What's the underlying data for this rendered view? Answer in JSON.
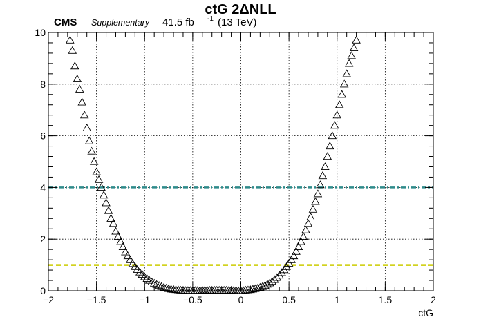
{
  "chart_data": {
    "type": "scatter",
    "title": "ctG 2ΔNLL",
    "xlabel": "ctG",
    "ylabel": "",
    "xlim": [
      -2,
      2
    ],
    "ylim": [
      0,
      10
    ],
    "x_ticks": [
      -2,
      -1.5,
      -1,
      -0.5,
      0,
      0.5,
      1,
      1.5,
      2
    ],
    "x_tick_labels": [
      "−2",
      "−1.5",
      "−1",
      "−0.5",
      "0",
      "0.5",
      "1",
      "1.5",
      "2"
    ],
    "y_ticks": [
      0,
      2,
      4,
      6,
      8,
      10
    ],
    "y_tick_labels": [
      "0",
      "2",
      "4",
      "6",
      "8",
      "10"
    ],
    "grid": true,
    "marker": "open-triangle",
    "annotations": {
      "experiment": "CMS",
      "status": "Supplementary",
      "lumi": "41.5 fb",
      "lumi_exp": "-1",
      "energy": "(13 TeV)"
    },
    "reference_lines": [
      {
        "y": 4,
        "color": "#2e8b8b",
        "style": "dash-dot"
      },
      {
        "y": 1,
        "color": "#cccc00",
        "style": "dashed"
      }
    ],
    "series": [
      {
        "x": [
          -1.775,
          -1.75,
          -1.725,
          -1.7,
          -1.675,
          -1.65,
          -1.625,
          -1.6,
          -1.575,
          -1.55,
          -1.525,
          -1.5,
          -1.475,
          -1.45,
          -1.425,
          -1.4,
          -1.375,
          -1.35,
          -1.325,
          -1.3,
          -1.275,
          -1.25,
          -1.225,
          -1.2,
          -1.175,
          -1.15,
          -1.125,
          -1.1,
          -1.075,
          -1.05,
          -1.025,
          -1.0,
          -0.975,
          -0.95,
          -0.925,
          -0.9,
          -0.875,
          -0.85,
          -0.825,
          -0.8,
          -0.775,
          -0.75,
          -0.725,
          -0.7,
          -0.675,
          -0.65,
          -0.625,
          -0.6,
          -0.575,
          -0.55,
          -0.525,
          -0.5,
          -0.475,
          -0.45,
          -0.425,
          -0.4,
          -0.375,
          -0.35,
          -0.325,
          -0.3,
          -0.275,
          -0.25,
          -0.225,
          -0.2,
          -0.175,
          -0.15,
          -0.125,
          -0.1,
          -0.075,
          -0.05,
          -0.025,
          0.0,
          0.025,
          0.05,
          0.075,
          0.1,
          0.125,
          0.15,
          0.175,
          0.2,
          0.225,
          0.25,
          0.275,
          0.3,
          0.325,
          0.35,
          0.375,
          0.4,
          0.425,
          0.45,
          0.475,
          0.5,
          0.525,
          0.55,
          0.575,
          0.6,
          0.625,
          0.65,
          0.675,
          0.7,
          0.725,
          0.75,
          0.775,
          0.8,
          0.825,
          0.85,
          0.875,
          0.9,
          0.925,
          0.95,
          0.975,
          1.0,
          1.025,
          1.05,
          1.075,
          1.1,
          1.125,
          1.15,
          1.175,
          1.2
        ],
        "y": [
          9.7,
          9.3,
          8.7,
          8.2,
          7.8,
          7.3,
          6.8,
          6.3,
          5.8,
          5.4,
          5.0,
          4.6,
          4.3,
          4.0,
          3.7,
          3.4,
          3.1,
          2.8,
          2.6,
          2.3,
          2.1,
          1.9,
          1.7,
          1.5,
          1.35,
          1.2,
          1.05,
          0.93,
          0.82,
          0.72,
          0.63,
          0.54,
          0.47,
          0.4,
          0.34,
          0.29,
          0.24,
          0.2,
          0.16,
          0.13,
          0.1,
          0.08,
          0.06,
          0.05,
          0.04,
          0.03,
          0.02,
          0.02,
          0.01,
          0.01,
          0.01,
          0.01,
          0.01,
          0.01,
          0.01,
          0.02,
          0.02,
          0.02,
          0.02,
          0.02,
          0.02,
          0.02,
          0.02,
          0.02,
          0.02,
          0.02,
          0.02,
          0.02,
          0.01,
          0.01,
          0.0,
          0.0,
          0.01,
          0.02,
          0.03,
          0.04,
          0.06,
          0.08,
          0.1,
          0.13,
          0.16,
          0.2,
          0.25,
          0.3,
          0.36,
          0.43,
          0.51,
          0.6,
          0.7,
          0.81,
          0.93,
          1.06,
          1.2,
          1.35,
          1.52,
          1.7,
          1.9,
          2.1,
          2.35,
          2.6,
          2.85,
          3.15,
          3.45,
          3.75,
          4.1,
          4.45,
          4.8,
          5.2,
          5.6,
          6.0,
          6.4,
          6.8,
          7.2,
          7.6,
          8.0,
          8.4,
          8.8,
          9.1,
          9.4,
          9.7
        ]
      }
    ]
  }
}
